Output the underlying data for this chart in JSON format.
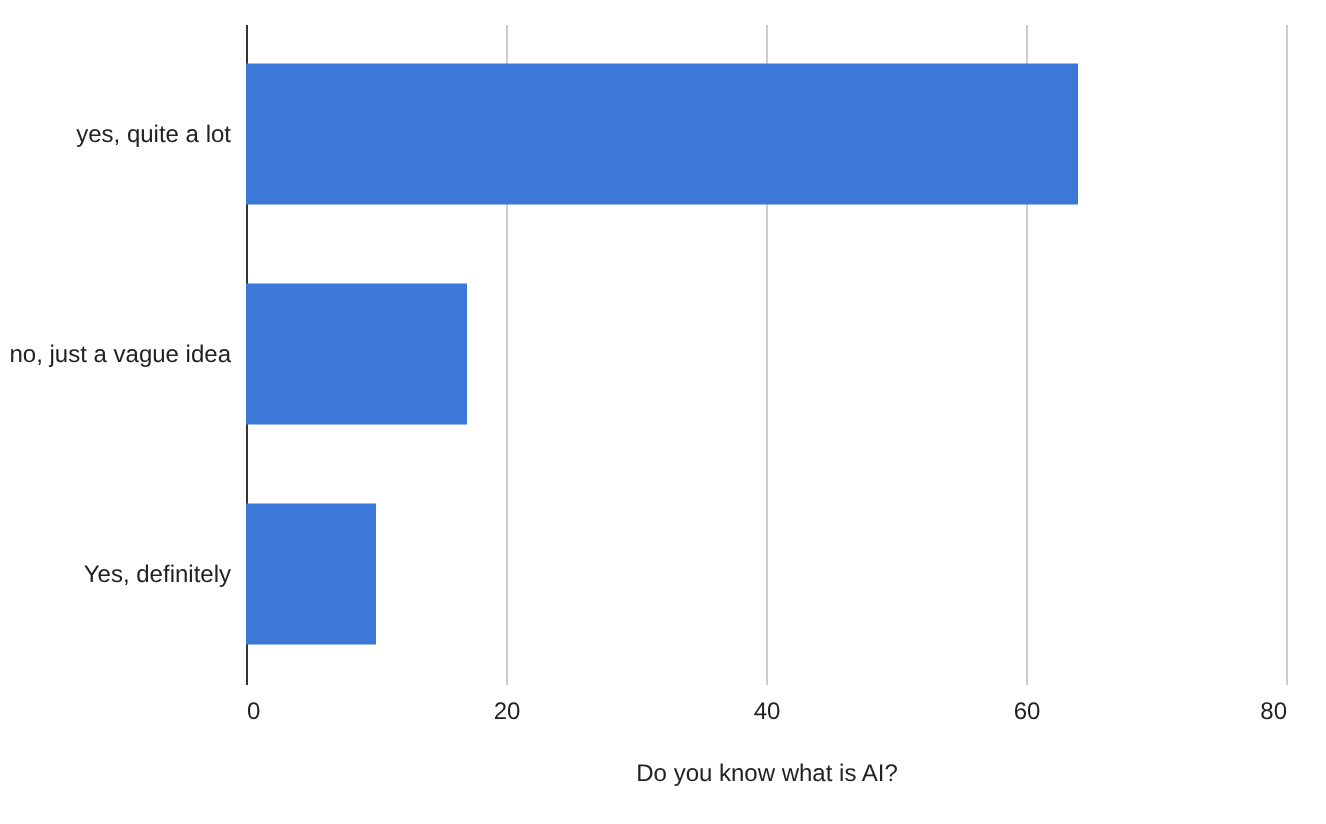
{
  "chart_data": {
    "type": "bar",
    "orientation": "horizontal",
    "xlabel": "Do you know what is AI?",
    "categories": [
      "yes, quite a lot",
      "no, just a vague idea",
      "Yes, definitely"
    ],
    "values": [
      64,
      17,
      10
    ],
    "color": "#3c78d8",
    "xlim": [
      0,
      80
    ],
    "xticks": [
      0,
      20,
      40,
      60,
      80
    ],
    "grid": "x"
  }
}
